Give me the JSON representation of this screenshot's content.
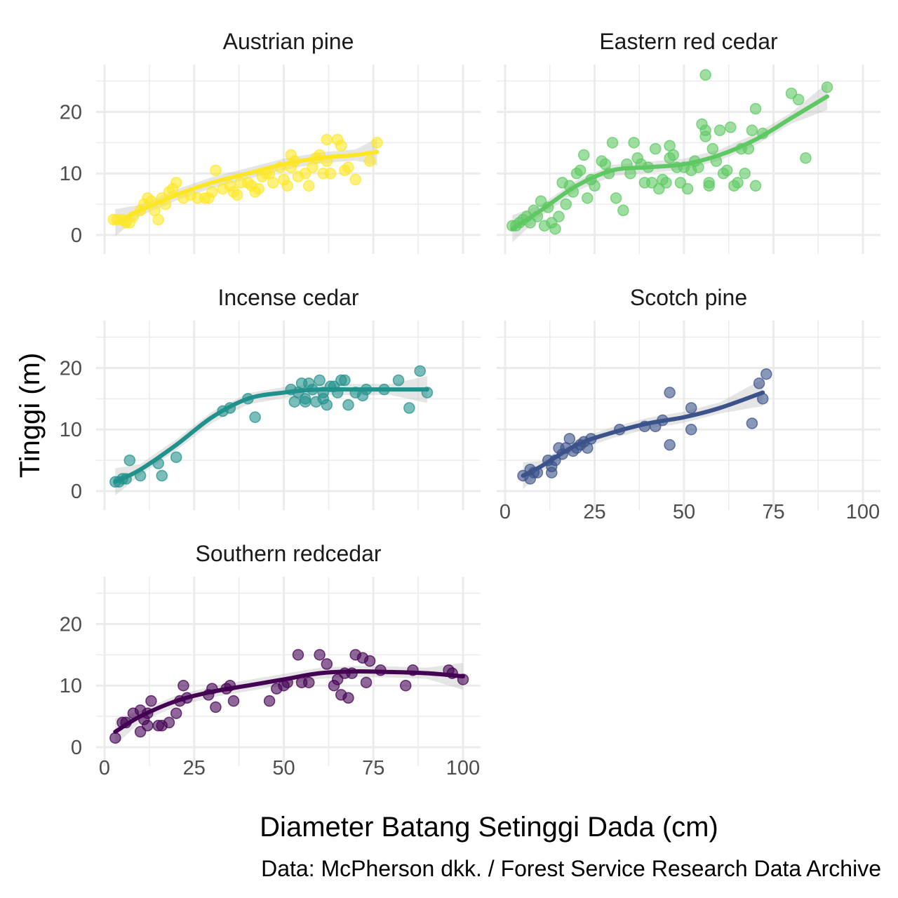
{
  "chart_data": {
    "type": "scatter",
    "xlabel": "Diameter Batang Setinggi Dada (cm)",
    "ylabel": "Tinggi (m)",
    "caption": "Data: McPherson dkk. / Forest Service Research Data Archive",
    "xlim": [
      0,
      100
    ],
    "ylim": [
      0,
      27
    ],
    "x_ticks": [
      0,
      25,
      50,
      75,
      100
    ],
    "y_ticks": [
      0,
      10,
      20
    ],
    "grid": true,
    "legend": "none",
    "trend": "smoothed curve with confidence band",
    "panels": [
      {
        "name": "Austrian pine",
        "color": "#FDE725",
        "points": [
          [
            2.5,
            2.5
          ],
          [
            3.5,
            2.5
          ],
          [
            5,
            2.5
          ],
          [
            6,
            2
          ],
          [
            7,
            2
          ],
          [
            8,
            3
          ],
          [
            10,
            4
          ],
          [
            11,
            5
          ],
          [
            12,
            6
          ],
          [
            13,
            5.5
          ],
          [
            14,
            4
          ],
          [
            15,
            2.5
          ],
          [
            16,
            6
          ],
          [
            17,
            5
          ],
          [
            18,
            7
          ],
          [
            19,
            7.5
          ],
          [
            20,
            8.5
          ],
          [
            22,
            6
          ],
          [
            24,
            6.5
          ],
          [
            26,
            6
          ],
          [
            28,
            6
          ],
          [
            29,
            6
          ],
          [
            30,
            7
          ],
          [
            31,
            10.5
          ],
          [
            33,
            7.5
          ],
          [
            35,
            8
          ],
          [
            36,
            7
          ],
          [
            37,
            6.5
          ],
          [
            38,
            8.5
          ],
          [
            40,
            8.5
          ],
          [
            41,
            8
          ],
          [
            42,
            7
          ],
          [
            43,
            7.5
          ],
          [
            44,
            9.5
          ],
          [
            45,
            10
          ],
          [
            46,
            10
          ],
          [
            47,
            8.5
          ],
          [
            49,
            11
          ],
          [
            50,
            9
          ],
          [
            51,
            8
          ],
          [
            52,
            13
          ],
          [
            52,
            11
          ],
          [
            53,
            12
          ],
          [
            54,
            9.5
          ],
          [
            56,
            10
          ],
          [
            57,
            8
          ],
          [
            58,
            11
          ],
          [
            59,
            12.5
          ],
          [
            60,
            13
          ],
          [
            61,
            10
          ],
          [
            62,
            12
          ],
          [
            62,
            15.5
          ],
          [
            63,
            10
          ],
          [
            65,
            15.5
          ],
          [
            66,
            14.5
          ],
          [
            67,
            10.5
          ],
          [
            68,
            11
          ],
          [
            70,
            9
          ],
          [
            74,
            12
          ],
          [
            76,
            15
          ]
        ],
        "trend": [
          [
            3,
            2
          ],
          [
            10,
            4
          ],
          [
            20,
            6.5
          ],
          [
            30,
            8.5
          ],
          [
            40,
            10
          ],
          [
            50,
            11.5
          ],
          [
            60,
            12.5
          ],
          [
            70,
            13
          ],
          [
            76,
            13.5
          ]
        ]
      },
      {
        "name": "Eastern red cedar",
        "color": "#5EC962",
        "points": [
          [
            2,
            1.5
          ],
          [
            3,
            1.5
          ],
          [
            4,
            2
          ],
          [
            5,
            2.5
          ],
          [
            6,
            3
          ],
          [
            7,
            2
          ],
          [
            8,
            4
          ],
          [
            9,
            3
          ],
          [
            10,
            5.5
          ],
          [
            11,
            1.5
          ],
          [
            12,
            4.5
          ],
          [
            13,
            2
          ],
          [
            14,
            1
          ],
          [
            15,
            3
          ],
          [
            16,
            8.5
          ],
          [
            17,
            5
          ],
          [
            18,
            8
          ],
          [
            19,
            7
          ],
          [
            20,
            10
          ],
          [
            21,
            10.5
          ],
          [
            22,
            13
          ],
          [
            23,
            6
          ],
          [
            24,
            9
          ],
          [
            25,
            8
          ],
          [
            27,
            12
          ],
          [
            28,
            11.5
          ],
          [
            29,
            10
          ],
          [
            30,
            15
          ],
          [
            31,
            6
          ],
          [
            33,
            4
          ],
          [
            34,
            11.5
          ],
          [
            35,
            10
          ],
          [
            36,
            15
          ],
          [
            37,
            12.5
          ],
          [
            38,
            11.5
          ],
          [
            39,
            8.5
          ],
          [
            40,
            11
          ],
          [
            41,
            8.5
          ],
          [
            42,
            14
          ],
          [
            43,
            7.5
          ],
          [
            44,
            9
          ],
          [
            45,
            8.5
          ],
          [
            46,
            12.5
          ],
          [
            46,
            14.5
          ],
          [
            47,
            13
          ],
          [
            48,
            11
          ],
          [
            49,
            8.5
          ],
          [
            50,
            11
          ],
          [
            51,
            7.5
          ],
          [
            52,
            10.5
          ],
          [
            53,
            12
          ],
          [
            54,
            11
          ],
          [
            55,
            18
          ],
          [
            56,
            16
          ],
          [
            56,
            17
          ],
          [
            56,
            26
          ],
          [
            57,
            8
          ],
          [
            57,
            8.5
          ],
          [
            58,
            14
          ],
          [
            59,
            12
          ],
          [
            60,
            17
          ],
          [
            61,
            10
          ],
          [
            62,
            10.5
          ],
          [
            63,
            17.5
          ],
          [
            64,
            8
          ],
          [
            65,
            8.5
          ],
          [
            66,
            14
          ],
          [
            67,
            10
          ],
          [
            68,
            14
          ],
          [
            69,
            17
          ],
          [
            70,
            20.5
          ],
          [
            70,
            8
          ],
          [
            72,
            16.5
          ],
          [
            80,
            23
          ],
          [
            82,
            22
          ],
          [
            84,
            12.5
          ],
          [
            90,
            24
          ]
        ],
        "trend": [
          [
            2,
            1
          ],
          [
            10,
            4
          ],
          [
            20,
            8
          ],
          [
            30,
            10.5
          ],
          [
            40,
            11
          ],
          [
            50,
            11.5
          ],
          [
            60,
            13
          ],
          [
            70,
            15.5
          ],
          [
            80,
            19
          ],
          [
            90,
            22.5
          ]
        ]
      },
      {
        "name": "Incense cedar",
        "color": "#21918C",
        "points": [
          [
            3,
            1.5
          ],
          [
            4,
            1.5
          ],
          [
            5,
            2
          ],
          [
            6,
            2
          ],
          [
            7,
            5
          ],
          [
            10,
            2.5
          ],
          [
            15,
            4.5
          ],
          [
            16,
            2.5
          ],
          [
            20,
            5.5
          ],
          [
            33,
            13
          ],
          [
            35,
            13.5
          ],
          [
            40,
            15
          ],
          [
            42,
            12
          ],
          [
            52,
            16.5
          ],
          [
            53,
            14.5
          ],
          [
            54,
            16
          ],
          [
            55,
            17.5
          ],
          [
            56,
            15
          ],
          [
            56,
            14.5
          ],
          [
            57,
            17.5
          ],
          [
            58,
            16.5
          ],
          [
            59,
            14.5
          ],
          [
            60,
            18
          ],
          [
            61,
            16
          ],
          [
            61,
            15
          ],
          [
            62,
            14
          ],
          [
            63,
            17
          ],
          [
            64,
            17
          ],
          [
            65,
            16
          ],
          [
            66,
            18
          ],
          [
            67,
            18
          ],
          [
            68,
            14
          ],
          [
            70,
            16
          ],
          [
            72,
            15.5
          ],
          [
            73,
            16.5
          ],
          [
            78,
            16.5
          ],
          [
            82,
            18
          ],
          [
            85,
            13.5
          ],
          [
            88,
            19.5
          ],
          [
            90,
            16
          ]
        ],
        "trend": [
          [
            3,
            1.5
          ],
          [
            10,
            3.5
          ],
          [
            20,
            7.5
          ],
          [
            30,
            12
          ],
          [
            40,
            15
          ],
          [
            50,
            16
          ],
          [
            60,
            16.5
          ],
          [
            70,
            16.5
          ],
          [
            80,
            16.5
          ],
          [
            90,
            16.5
          ]
        ]
      },
      {
        "name": "Scotch pine",
        "color": "#3B528B",
        "points": [
          [
            5,
            2.5
          ],
          [
            7,
            2
          ],
          [
            7,
            3.5
          ],
          [
            8,
            3
          ],
          [
            9,
            3
          ],
          [
            12,
            5
          ],
          [
            13,
            3
          ],
          [
            13,
            4
          ],
          [
            14,
            5
          ],
          [
            15,
            7
          ],
          [
            16,
            6
          ],
          [
            17,
            7
          ],
          [
            18,
            8.5
          ],
          [
            19,
            6.5
          ],
          [
            20,
            7
          ],
          [
            21,
            7.5
          ],
          [
            22,
            8
          ],
          [
            23,
            7
          ],
          [
            24,
            8.5
          ],
          [
            32,
            10
          ],
          [
            39,
            10.5
          ],
          [
            42,
            10.5
          ],
          [
            44,
            11.5
          ],
          [
            46,
            16
          ],
          [
            46,
            7.5
          ],
          [
            52,
            13.5
          ],
          [
            52,
            10
          ],
          [
            69,
            11
          ],
          [
            71,
            17.5
          ],
          [
            72,
            15
          ],
          [
            73,
            19
          ]
        ],
        "trend": [
          [
            5,
            2.5
          ],
          [
            10,
            4
          ],
          [
            20,
            7.5
          ],
          [
            30,
            9.5
          ],
          [
            40,
            11
          ],
          [
            50,
            12
          ],
          [
            60,
            13.5
          ],
          [
            72,
            16
          ]
        ]
      },
      {
        "name": "Southern redcedar",
        "color": "#440154",
        "points": [
          [
            3,
            1.5
          ],
          [
            5,
            4
          ],
          [
            6,
            4
          ],
          [
            8,
            5.5
          ],
          [
            10,
            2.5
          ],
          [
            10,
            6
          ],
          [
            11,
            4.5
          ],
          [
            12,
            5.5
          ],
          [
            12,
            3.5
          ],
          [
            13,
            7.5
          ],
          [
            15,
            3.5
          ],
          [
            16,
            3.5
          ],
          [
            18,
            4
          ],
          [
            20,
            5.5
          ],
          [
            21,
            7.5
          ],
          [
            22,
            10
          ],
          [
            23,
            8
          ],
          [
            29,
            8.5
          ],
          [
            30,
            9.5
          ],
          [
            31,
            6.5
          ],
          [
            34,
            9.5
          ],
          [
            35,
            10
          ],
          [
            36,
            7.5
          ],
          [
            46,
            7.5
          ],
          [
            48,
            9.5
          ],
          [
            50,
            10
          ],
          [
            51,
            10.5
          ],
          [
            54,
            15
          ],
          [
            55,
            10.5
          ],
          [
            57,
            10.5
          ],
          [
            60,
            15
          ],
          [
            62,
            13.5
          ],
          [
            64,
            10
          ],
          [
            65,
            11
          ],
          [
            66,
            8.5
          ],
          [
            67,
            12
          ],
          [
            68,
            8
          ],
          [
            69,
            12
          ],
          [
            70,
            15
          ],
          [
            72,
            14.5
          ],
          [
            73,
            10.5
          ],
          [
            74,
            14
          ],
          [
            77,
            12.5
          ],
          [
            84,
            10
          ],
          [
            86,
            12.5
          ],
          [
            96,
            12.5
          ],
          [
            97,
            12
          ],
          [
            100,
            11
          ]
        ],
        "trend": [
          [
            3,
            2.5
          ],
          [
            10,
            5
          ],
          [
            20,
            7.5
          ],
          [
            30,
            9
          ],
          [
            40,
            10
          ],
          [
            50,
            11
          ],
          [
            60,
            12
          ],
          [
            70,
            12.3
          ],
          [
            80,
            12.2
          ],
          [
            90,
            12
          ],
          [
            100,
            11.5
          ]
        ]
      }
    ]
  }
}
